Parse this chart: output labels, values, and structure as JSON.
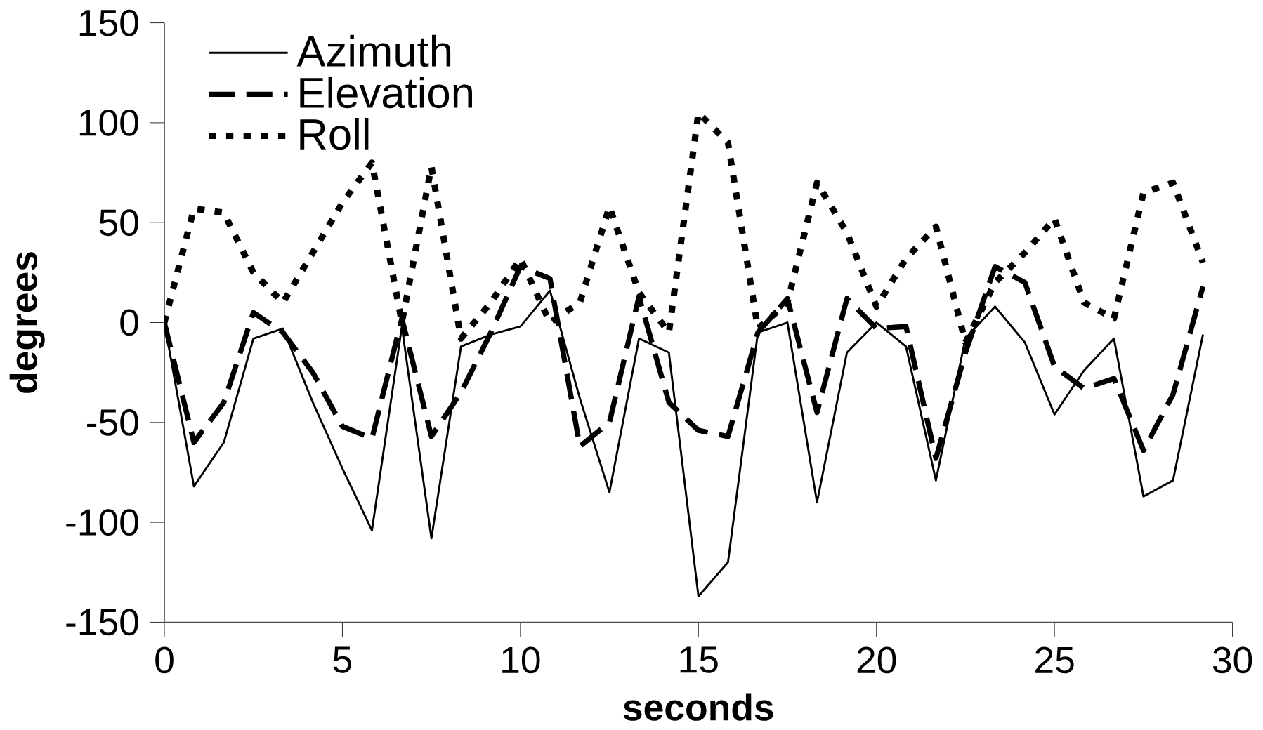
{
  "chart_data": {
    "type": "line",
    "xlabel": "seconds",
    "ylabel": "degrees",
    "x": [
      0,
      0.83,
      1.67,
      2.5,
      3.33,
      4.17,
      5,
      5.83,
      6.67,
      7.5,
      8.33,
      9.17,
      10,
      10.83,
      11.67,
      12.5,
      13.33,
      14.17,
      15,
      15.83,
      16.67,
      17.5,
      18.33,
      19.17,
      20,
      20.83,
      21.67,
      22.5,
      23.33,
      24.17,
      25,
      25.83,
      26.67,
      27.5,
      28.33,
      29.17
    ],
    "series": [
      {
        "name": "Azimuth",
        "color": "#000000",
        "line_style": "solid",
        "values": [
          0,
          -82,
          -60,
          -8,
          -3,
          -40,
          -73,
          -104,
          -2,
          -108,
          -12,
          -6,
          -2,
          16,
          -38,
          -85,
          -8,
          -15,
          -137,
          -120,
          -5,
          0,
          -90,
          -15,
          0,
          -12,
          -79,
          -8,
          8,
          -10,
          -46,
          -24,
          -8,
          -87,
          -79,
          -6
        ]
      },
      {
        "name": "Elevation",
        "color": "#000000",
        "line_style": "dashed",
        "values": [
          0,
          -60,
          -40,
          5,
          -5,
          -25,
          -52,
          -58,
          2,
          -57,
          -35,
          -5,
          28,
          22,
          -62,
          -50,
          13,
          -40,
          -54,
          -57,
          -5,
          12,
          -45,
          12,
          -3,
          -2,
          -68,
          -15,
          28,
          20,
          -22,
          -33,
          -28,
          -64,
          -36,
          18
        ]
      },
      {
        "name": "Roll",
        "color": "#000000",
        "line_style": "dotted",
        "values": [
          0,
          57,
          55,
          25,
          10,
          35,
          60,
          80,
          0,
          78,
          -8,
          10,
          32,
          0,
          10,
          58,
          15,
          -5,
          105,
          90,
          -3,
          10,
          70,
          45,
          8,
          32,
          48,
          -10,
          20,
          35,
          52,
          10,
          2,
          65,
          70,
          30
        ]
      }
    ],
    "xlim": [
      0,
      30
    ],
    "xticks": [
      0,
      5,
      10,
      15,
      20,
      25,
      30
    ],
    "ylim": [
      -150,
      150
    ],
    "yticks": [
      -150,
      -100,
      -50,
      0,
      50,
      100,
      150
    ],
    "grid": false,
    "legend": "top left",
    "marker": "none"
  }
}
